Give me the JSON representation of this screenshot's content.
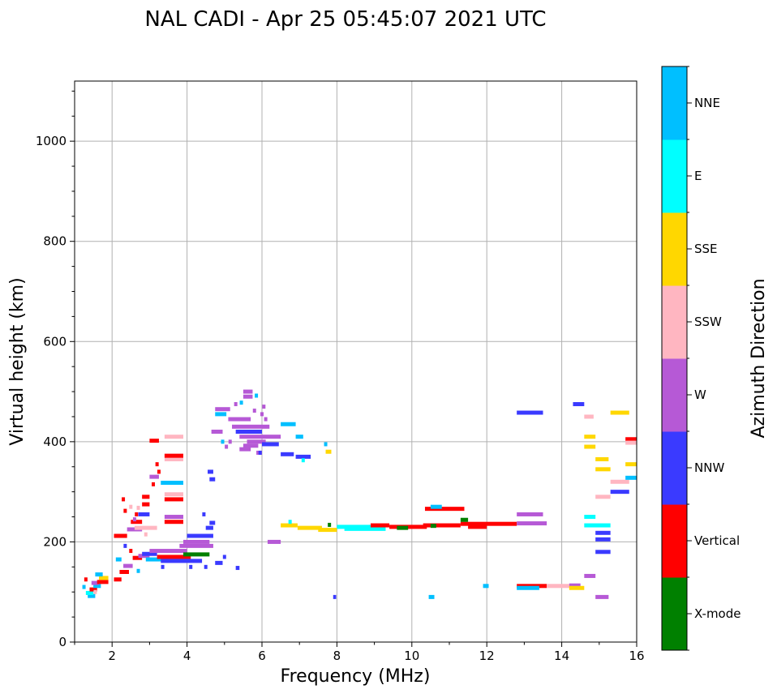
{
  "chart_data": {
    "type": "scatter",
    "title": "NAL CADI - Apr 25 05:45:07 2021 UTC",
    "xlabel": "Frequency (MHz)",
    "ylabel": "Virtual height (km)",
    "xlim": [
      1,
      16
    ],
    "ylim": [
      0,
      1120
    ],
    "xticks": [
      2,
      4,
      6,
      8,
      10,
      12,
      14,
      16
    ],
    "yticks": [
      0,
      200,
      400,
      600,
      800,
      1000
    ],
    "grid": true,
    "colorbar": {
      "label": "Azimuth Direction",
      "categories": [
        {
          "name": "X-mode",
          "color": "#008000"
        },
        {
          "name": "Vertical",
          "color": "#ff0000"
        },
        {
          "name": "NNW",
          "color": "#3a3aff"
        },
        {
          "name": "W",
          "color": "#b659d6"
        },
        {
          "name": "SSW",
          "color": "#ffb6c1"
        },
        {
          "name": "SSE",
          "color": "#ffd700"
        },
        {
          "name": "E",
          "color": "#00ffff"
        },
        {
          "name": "NNE",
          "color": "#00bfff"
        }
      ]
    },
    "echoes": [
      {
        "dir": "NNE",
        "x1": 1.35,
        "x2": 1.55,
        "y": 92
      },
      {
        "dir": "E",
        "x1": 1.3,
        "x2": 1.5,
        "y": 98
      },
      {
        "dir": "Vertical",
        "x1": 1.4,
        "x2": 1.6,
        "y": 105
      },
      {
        "dir": "NNE",
        "x1": 1.5,
        "x2": 1.7,
        "y": 112
      },
      {
        "dir": "W",
        "x1": 1.45,
        "x2": 1.65,
        "y": 118
      },
      {
        "dir": "Vertical",
        "x1": 1.6,
        "x2": 1.9,
        "y": 120
      },
      {
        "dir": "SSE",
        "x1": 1.65,
        "x2": 1.9,
        "y": 128
      },
      {
        "dir": "NNE",
        "x1": 1.55,
        "x2": 1.75,
        "y": 135
      },
      {
        "dir": "Vertical",
        "x1": 2.05,
        "x2": 2.25,
        "y": 125
      },
      {
        "dir": "Vertical",
        "x1": 2.2,
        "x2": 2.45,
        "y": 140
      },
      {
        "dir": "W",
        "x1": 2.3,
        "x2": 2.55,
        "y": 152
      },
      {
        "dir": "NNE",
        "x1": 2.1,
        "x2": 2.25,
        "y": 165
      },
      {
        "dir": "Vertical",
        "x1": 2.55,
        "x2": 2.8,
        "y": 168
      },
      {
        "dir": "W",
        "x1": 2.7,
        "x2": 3.0,
        "y": 172
      },
      {
        "dir": "NNW",
        "x1": 2.8,
        "x2": 3.2,
        "y": 176
      },
      {
        "dir": "NNE",
        "x1": 2.9,
        "x2": 3.5,
        "y": 165
      },
      {
        "dir": "W",
        "x1": 3.0,
        "x2": 4.0,
        "y": 182
      },
      {
        "dir": "Vertical",
        "x1": 3.2,
        "x2": 4.1,
        "y": 170
      },
      {
        "dir": "NNW",
        "x1": 3.3,
        "x2": 4.4,
        "y": 162
      },
      {
        "dir": "X-mode",
        "x1": 3.9,
        "x2": 4.6,
        "y": 175
      },
      {
        "dir": "W",
        "x1": 3.8,
        "x2": 4.7,
        "y": 192
      },
      {
        "dir": "W",
        "x1": 3.9,
        "x2": 4.6,
        "y": 200
      },
      {
        "dir": "NNW",
        "x1": 4.0,
        "x2": 4.7,
        "y": 212
      },
      {
        "dir": "NNW",
        "x1": 4.5,
        "x2": 4.7,
        "y": 228
      },
      {
        "dir": "NNW",
        "x1": 4.6,
        "x2": 4.75,
        "y": 238
      },
      {
        "dir": "NNW",
        "x1": 4.75,
        "x2": 4.95,
        "y": 158
      },
      {
        "dir": "Vertical",
        "x1": 2.05,
        "x2": 2.4,
        "y": 212
      },
      {
        "dir": "W",
        "x1": 2.4,
        "x2": 2.8,
        "y": 225
      },
      {
        "dir": "SSW",
        "x1": 2.6,
        "x2": 3.2,
        "y": 228
      },
      {
        "dir": "Vertical",
        "x1": 2.5,
        "x2": 2.8,
        "y": 240
      },
      {
        "dir": "NNW",
        "x1": 2.7,
        "x2": 3.0,
        "y": 255
      },
      {
        "dir": "Vertical",
        "x1": 2.8,
        "x2": 3.0,
        "y": 275
      },
      {
        "dir": "Vertical",
        "x1": 2.8,
        "x2": 3.0,
        "y": 290
      },
      {
        "dir": "NNE",
        "x1": 3.3,
        "x2": 3.9,
        "y": 318
      },
      {
        "dir": "Vertical",
        "x1": 3.4,
        "x2": 3.9,
        "y": 285
      },
      {
        "dir": "SSW",
        "x1": 3.4,
        "x2": 3.9,
        "y": 295
      },
      {
        "dir": "W",
        "x1": 3.4,
        "x2": 3.9,
        "y": 250
      },
      {
        "dir": "Vertical",
        "x1": 3.4,
        "x2": 3.9,
        "y": 240
      },
      {
        "dir": "SSW",
        "x1": 3.4,
        "x2": 3.9,
        "y": 365
      },
      {
        "dir": "Vertical",
        "x1": 3.4,
        "x2": 3.9,
        "y": 372
      },
      {
        "dir": "SSW",
        "x1": 3.4,
        "x2": 3.9,
        "y": 410
      },
      {
        "dir": "Vertical",
        "x1": 3.0,
        "x2": 3.25,
        "y": 402
      },
      {
        "dir": "W",
        "x1": 3.0,
        "x2": 3.25,
        "y": 330
      },
      {
        "dir": "NNW",
        "x1": 4.55,
        "x2": 4.7,
        "y": 340
      },
      {
        "dir": "NNW",
        "x1": 4.6,
        "x2": 4.75,
        "y": 325
      },
      {
        "dir": "W",
        "x1": 4.65,
        "x2": 4.95,
        "y": 420
      },
      {
        "dir": "NNE",
        "x1": 4.75,
        "x2": 5.05,
        "y": 455
      },
      {
        "dir": "W",
        "x1": 4.75,
        "x2": 5.15,
        "y": 465
      },
      {
        "dir": "W",
        "x1": 5.1,
        "x2": 5.7,
        "y": 445
      },
      {
        "dir": "W",
        "x1": 5.2,
        "x2": 6.2,
        "y": 430
      },
      {
        "dir": "NNW",
        "x1": 5.3,
        "x2": 6.0,
        "y": 420
      },
      {
        "dir": "W",
        "x1": 5.4,
        "x2": 6.5,
        "y": 410
      },
      {
        "dir": "W",
        "x1": 5.6,
        "x2": 6.1,
        "y": 400
      },
      {
        "dir": "W",
        "x1": 5.5,
        "x2": 5.9,
        "y": 392
      },
      {
        "dir": "W",
        "x1": 5.4,
        "x2": 5.7,
        "y": 385
      },
      {
        "dir": "W",
        "x1": 5.85,
        "x2": 6.0,
        "y": 378
      },
      {
        "dir": "W",
        "x1": 5.5,
        "x2": 5.75,
        "y": 490
      },
      {
        "dir": "W",
        "x1": 5.5,
        "x2": 5.75,
        "y": 500
      },
      {
        "dir": "NNE",
        "x1": 6.5,
        "x2": 6.9,
        "y": 435
      },
      {
        "dir": "NNW",
        "x1": 6.0,
        "x2": 6.45,
        "y": 395
      },
      {
        "dir": "NNW",
        "x1": 6.5,
        "x2": 6.85,
        "y": 375
      },
      {
        "dir": "NNW",
        "x1": 6.9,
        "x2": 7.3,
        "y": 370
      },
      {
        "dir": "NNE",
        "x1": 6.9,
        "x2": 7.1,
        "y": 410
      },
      {
        "dir": "SSE",
        "x1": 7.7,
        "x2": 7.85,
        "y": 380
      },
      {
        "dir": "W",
        "x1": 6.15,
        "x2": 6.5,
        "y": 200
      },
      {
        "dir": "SSE",
        "x1": 6.5,
        "x2": 6.95,
        "y": 233
      },
      {
        "dir": "SSE",
        "x1": 6.95,
        "x2": 7.6,
        "y": 228
      },
      {
        "dir": "SSE",
        "x1": 7.5,
        "x2": 8.0,
        "y": 224
      },
      {
        "dir": "E",
        "x1": 8.0,
        "x2": 8.9,
        "y": 230
      },
      {
        "dir": "E",
        "x1": 8.2,
        "x2": 9.3,
        "y": 226
      },
      {
        "dir": "Vertical",
        "x1": 8.9,
        "x2": 9.4,
        "y": 233
      },
      {
        "dir": "Vertical",
        "x1": 9.4,
        "x2": 10.4,
        "y": 230
      },
      {
        "dir": "X-mode",
        "x1": 9.6,
        "x2": 9.9,
        "y": 228
      },
      {
        "dir": "Vertical",
        "x1": 10.3,
        "x2": 11.3,
        "y": 233
      },
      {
        "dir": "X-mode",
        "x1": 10.5,
        "x2": 10.65,
        "y": 232
      },
      {
        "dir": "Vertical",
        "x1": 10.35,
        "x2": 11.4,
        "y": 266
      },
      {
        "dir": "NNE",
        "x1": 10.5,
        "x2": 10.8,
        "y": 270
      },
      {
        "dir": "Vertical",
        "x1": 11.3,
        "x2": 12.8,
        "y": 236
      },
      {
        "dir": "X-mode",
        "x1": 11.3,
        "x2": 11.5,
        "y": 244
      },
      {
        "dir": "Vertical",
        "x1": 11.5,
        "x2": 12.0,
        "y": 230
      },
      {
        "dir": "W",
        "x1": 12.8,
        "x2": 13.6,
        "y": 237
      },
      {
        "dir": "W",
        "x1": 12.8,
        "x2": 13.5,
        "y": 255
      },
      {
        "dir": "NNW",
        "x1": 12.8,
        "x2": 13.5,
        "y": 458
      },
      {
        "dir": "Vertical",
        "x1": 12.8,
        "x2": 13.6,
        "y": 112
      },
      {
        "dir": "NNE",
        "x1": 12.8,
        "x2": 13.4,
        "y": 108
      },
      {
        "dir": "SSW",
        "x1": 13.6,
        "x2": 14.2,
        "y": 112
      },
      {
        "dir": "W",
        "x1": 14.2,
        "x2": 14.5,
        "y": 113
      },
      {
        "dir": "SSE",
        "x1": 14.2,
        "x2": 14.6,
        "y": 108
      },
      {
        "dir": "NNW",
        "x1": 14.3,
        "x2": 14.6,
        "y": 475
      },
      {
        "dir": "SSW",
        "x1": 14.6,
        "x2": 14.85,
        "y": 450
      },
      {
        "dir": "SSE",
        "x1": 14.6,
        "x2": 14.9,
        "y": 410
      },
      {
        "dir": "SSE",
        "x1": 14.6,
        "x2": 14.9,
        "y": 390
      },
      {
        "dir": "SSE",
        "x1": 14.9,
        "x2": 15.25,
        "y": 365
      },
      {
        "dir": "SSE",
        "x1": 14.9,
        "x2": 15.3,
        "y": 345
      },
      {
        "dir": "SSW",
        "x1": 14.9,
        "x2": 15.3,
        "y": 290
      },
      {
        "dir": "E",
        "x1": 14.6,
        "x2": 14.9,
        "y": 250
      },
      {
        "dir": "E",
        "x1": 14.6,
        "x2": 15.3,
        "y": 233
      },
      {
        "dir": "NNW",
        "x1": 14.9,
        "x2": 15.3,
        "y": 218
      },
      {
        "dir": "NNW",
        "x1": 14.9,
        "x2": 15.3,
        "y": 205
      },
      {
        "dir": "NNW",
        "x1": 14.9,
        "x2": 15.3,
        "y": 180
      },
      {
        "dir": "W",
        "x1": 14.6,
        "x2": 14.9,
        "y": 132
      },
      {
        "dir": "W",
        "x1": 14.9,
        "x2": 15.25,
        "y": 90
      },
      {
        "dir": "SSE",
        "x1": 15.3,
        "x2": 15.8,
        "y": 458
      },
      {
        "dir": "NNW",
        "x1": 15.3,
        "x2": 15.8,
        "y": 300
      },
      {
        "dir": "SSW",
        "x1": 15.3,
        "x2": 15.8,
        "y": 320
      },
      {
        "dir": "SSE",
        "x1": 15.7,
        "x2": 16.0,
        "y": 355
      },
      {
        "dir": "NNE",
        "x1": 15.7,
        "x2": 16.0,
        "y": 328
      },
      {
        "dir": "Vertical",
        "x1": 15.7,
        "x2": 16.0,
        "y": 405
      },
      {
        "dir": "SSW",
        "x1": 15.7,
        "x2": 16.0,
        "y": 398
      },
      {
        "dir": "NNE",
        "x1": 11.9,
        "x2": 12.05,
        "y": 112
      },
      {
        "dir": "NNE",
        "x1": 10.45,
        "x2": 10.6,
        "y": 90
      },
      {
        "dir": "NNW",
        "x1": 7.9,
        "x2": 7.98,
        "y": 90
      },
      {
        "dir": "NNW",
        "x1": 5.3,
        "x2": 5.4,
        "y": 148
      }
    ],
    "pixels": [
      {
        "dir": "Vertical",
        "x": 2.3,
        "y": 285
      },
      {
        "dir": "Vertical",
        "x": 2.35,
        "y": 262
      },
      {
        "dir": "SSW",
        "x": 2.5,
        "y": 270
      },
      {
        "dir": "W",
        "x": 2.6,
        "y": 245
      },
      {
        "dir": "Vertical",
        "x": 2.65,
        "y": 255
      },
      {
        "dir": "SSW",
        "x": 2.7,
        "y": 268
      },
      {
        "dir": "Vertical",
        "x": 3.1,
        "y": 315
      },
      {
        "dir": "Vertical",
        "x": 3.2,
        "y": 355
      },
      {
        "dir": "Vertical",
        "x": 3.25,
        "y": 340
      },
      {
        "dir": "SSW",
        "x": 2.9,
        "y": 215
      },
      {
        "dir": "NNW",
        "x": 2.35,
        "y": 192
      },
      {
        "dir": "Vertical",
        "x": 2.5,
        "y": 182
      },
      {
        "dir": "NNE",
        "x": 2.7,
        "y": 142
      },
      {
        "dir": "SSW",
        "x": 1.55,
        "y": 100
      },
      {
        "dir": "NNE",
        "x": 1.25,
        "y": 110
      },
      {
        "dir": "Vertical",
        "x": 1.3,
        "y": 125
      },
      {
        "dir": "NNW",
        "x": 4.45,
        "y": 255
      },
      {
        "dir": "NNE",
        "x": 4.95,
        "y": 400
      },
      {
        "dir": "W",
        "x": 5.05,
        "y": 390
      },
      {
        "dir": "W",
        "x": 5.15,
        "y": 400
      },
      {
        "dir": "W",
        "x": 5.3,
        "y": 475
      },
      {
        "dir": "NNE",
        "x": 5.45,
        "y": 478
      },
      {
        "dir": "W",
        "x": 5.8,
        "y": 462
      },
      {
        "dir": "W",
        "x": 6.0,
        "y": 455
      },
      {
        "dir": "NNE",
        "x": 5.85,
        "y": 492
      },
      {
        "dir": "W",
        "x": 6.05,
        "y": 470
      },
      {
        "dir": "W",
        "x": 6.1,
        "y": 445
      },
      {
        "dir": "NNE",
        "x": 7.7,
        "y": 395
      },
      {
        "dir": "E",
        "x": 7.1,
        "y": 363
      },
      {
        "dir": "E",
        "x": 6.75,
        "y": 240
      },
      {
        "dir": "X-mode",
        "x": 7.8,
        "y": 234
      },
      {
        "dir": "NNW",
        "x": 4.1,
        "y": 150
      },
      {
        "dir": "NNW",
        "x": 3.35,
        "y": 150
      },
      {
        "dir": "NNW",
        "x": 5.0,
        "y": 170
      },
      {
        "dir": "NNW",
        "x": 4.5,
        "y": 150
      },
      {
        "dir": "NNW",
        "x": 5.95,
        "y": 378
      }
    ]
  }
}
